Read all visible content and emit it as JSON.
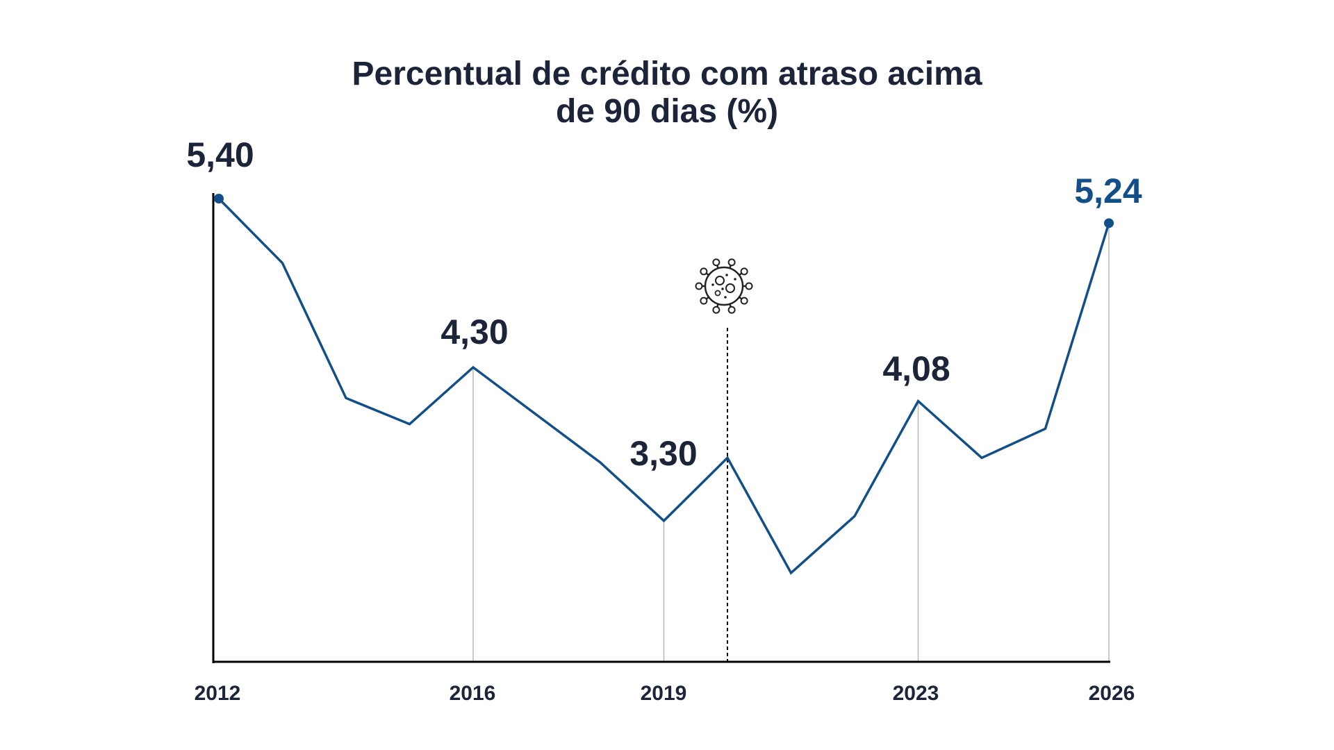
{
  "colors": {
    "series": "#124f88",
    "text": "#1b2438",
    "axis": "#000000",
    "drop_line": "#b8b8b8",
    "highlight": "#124f88"
  },
  "chart_data": {
    "type": "line",
    "title": [
      "Percentual de crédito com atraso acima",
      "de 90 dias (%)"
    ],
    "xlabel": "",
    "ylabel": "",
    "x": [
      2012,
      2013,
      2014,
      2015,
      2016,
      2017,
      2018,
      2019,
      2020,
      2021,
      2022,
      2023,
      2024,
      2025,
      2026
    ],
    "series": [
      {
        "values": [
          5.4,
          4.98,
          4.1,
          3.93,
          4.3,
          3.99,
          3.68,
          3.3,
          3.71,
          2.96,
          3.33,
          4.08,
          3.71,
          3.9,
          5.24
        ]
      }
    ],
    "ylim": [
      2.5,
      5.6
    ],
    "xlim": [
      2012,
      2026
    ],
    "grid": false,
    "legend": "none",
    "x_tick_labels": [
      "2012",
      "2016",
      "2019",
      "2023",
      "2026"
    ],
    "data_labels": [
      {
        "x": 2012,
        "text": "5,40",
        "color": "text"
      },
      {
        "x": 2016,
        "text": "4,30",
        "color": "text"
      },
      {
        "x": 2019,
        "text": "3,30",
        "color": "text"
      },
      {
        "x": 2023,
        "text": "4,08",
        "color": "text"
      },
      {
        "x": 2026,
        "text": "5,24",
        "color": "highlight"
      }
    ],
    "drop_lines_at": [
      2016,
      2019,
      2023,
      2026
    ],
    "event_marker": {
      "x": 2020,
      "style": "dashed",
      "icon": "virus-icon"
    },
    "end_markers": [
      2012,
      2026
    ]
  }
}
